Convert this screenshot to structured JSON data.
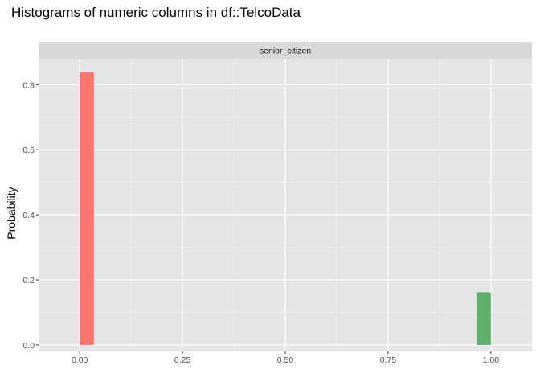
{
  "chart_data": {
    "type": "bar",
    "title": "Histograms of numeric columns in df::TelcoData",
    "facet": "senior_citizen",
    "xlabel": "",
    "ylabel": "Probability",
    "xlim": [
      -0.1,
      1.1
    ],
    "ylim": [
      -0.02,
      0.88
    ],
    "x_ticks": [
      0.0,
      0.25,
      0.5,
      0.75,
      1.0
    ],
    "x_tick_labels": [
      "0.00",
      "0.25",
      "0.50",
      "0.75",
      "1.00"
    ],
    "y_ticks": [
      0.0,
      0.2,
      0.4,
      0.6,
      0.8
    ],
    "y_tick_labels": [
      "0.0",
      "0.2",
      "0.4",
      "0.6",
      "0.8"
    ],
    "grid": true,
    "background_color": "#e5e5e5",
    "strip_color": "#d9d9d9",
    "bins": [
      {
        "x0": 0.0,
        "x1": 0.0345,
        "value": 0.838,
        "color": "#f8766d"
      },
      {
        "x0": 0.9655,
        "x1": 1.0,
        "value": 0.162,
        "color": "#5fae6b"
      }
    ]
  }
}
